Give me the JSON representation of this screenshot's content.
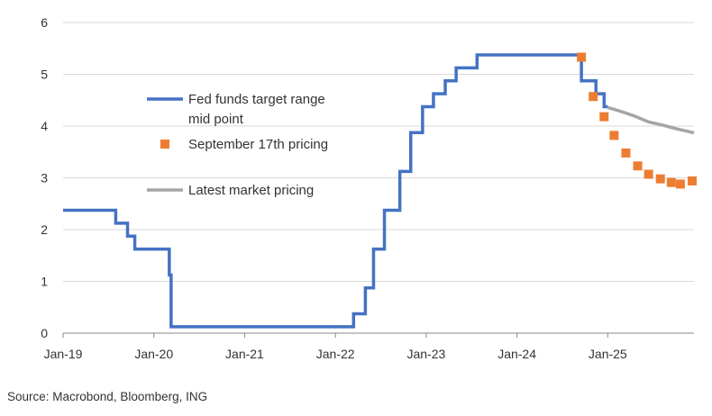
{
  "chart_data": {
    "type": "line",
    "title": "",
    "xlabel": "",
    "ylabel": "",
    "ylim": [
      0,
      6
    ],
    "yticks": [
      "0",
      "1",
      "2",
      "3",
      "4",
      "5",
      "6"
    ],
    "xlim": [
      2019.0,
      2025.95
    ],
    "xticks": [
      {
        "label": "Jan-19",
        "x": 2019.0
      },
      {
        "label": "Jan-20",
        "x": 2020.0
      },
      {
        "label": "Jan-21",
        "x": 2021.0
      },
      {
        "label": "Jan-22",
        "x": 2022.0
      },
      {
        "label": "Jan-23",
        "x": 2023.0
      },
      {
        "label": "Jan-24",
        "x": 2024.0
      },
      {
        "label": "Jan-25",
        "x": 2025.0
      }
    ],
    "grid": true,
    "series": [
      {
        "name": "Fed funds target range mid point",
        "style": "step-line",
        "color": "#4472C4",
        "points": [
          [
            2019.0,
            2.375
          ],
          [
            2019.58,
            2.125
          ],
          [
            2019.71,
            1.875
          ],
          [
            2019.79,
            1.625
          ],
          [
            2020.17,
            1.125
          ],
          [
            2020.19,
            0.125
          ],
          [
            2022.2,
            0.375
          ],
          [
            2022.33,
            0.875
          ],
          [
            2022.42,
            1.625
          ],
          [
            2022.54,
            2.375
          ],
          [
            2022.71,
            3.125
          ],
          [
            2022.83,
            3.875
          ],
          [
            2022.96,
            4.375
          ],
          [
            2023.08,
            4.625
          ],
          [
            2023.21,
            4.875
          ],
          [
            2023.33,
            5.125
          ],
          [
            2023.56,
            5.375
          ],
          [
            2024.71,
            4.875
          ],
          [
            2024.87,
            4.625
          ],
          [
            2024.96,
            4.375
          ],
          [
            2025.0,
            4.375
          ]
        ]
      },
      {
        "name": "September 17th pricing",
        "style": "markers",
        "color": "#ED7D31",
        "points": [
          [
            2024.71,
            5.33
          ],
          [
            2024.84,
            4.57
          ],
          [
            2024.96,
            4.18
          ],
          [
            2025.07,
            3.82
          ],
          [
            2025.2,
            3.48
          ],
          [
            2025.33,
            3.23
          ],
          [
            2025.45,
            3.07
          ],
          [
            2025.58,
            2.98
          ],
          [
            2025.7,
            2.91
          ],
          [
            2025.8,
            2.88
          ],
          [
            2025.93,
            2.94
          ]
        ]
      },
      {
        "name": "Latest market pricing",
        "style": "line",
        "color": "#A5A5A5",
        "points": [
          [
            2025.0,
            4.36
          ],
          [
            2025.15,
            4.28
          ],
          [
            2025.3,
            4.19
          ],
          [
            2025.45,
            4.08
          ],
          [
            2025.6,
            4.02
          ],
          [
            2025.75,
            3.95
          ],
          [
            2025.95,
            3.87
          ]
        ]
      }
    ],
    "legend": {
      "placement": "center-left",
      "entries": [
        {
          "label_lines": [
            "Fed funds target range",
            "mid point"
          ],
          "color": "#4472C4",
          "symbol": "line"
        },
        {
          "label_lines": [
            "September 17th pricing"
          ],
          "color": "#ED7D31",
          "symbol": "square"
        },
        {
          "label_lines": [
            "Latest market pricing"
          ],
          "color": "#A5A5A5",
          "symbol": "line"
        }
      ]
    }
  },
  "source": "Source: Macrobond, Bloomberg, ING"
}
